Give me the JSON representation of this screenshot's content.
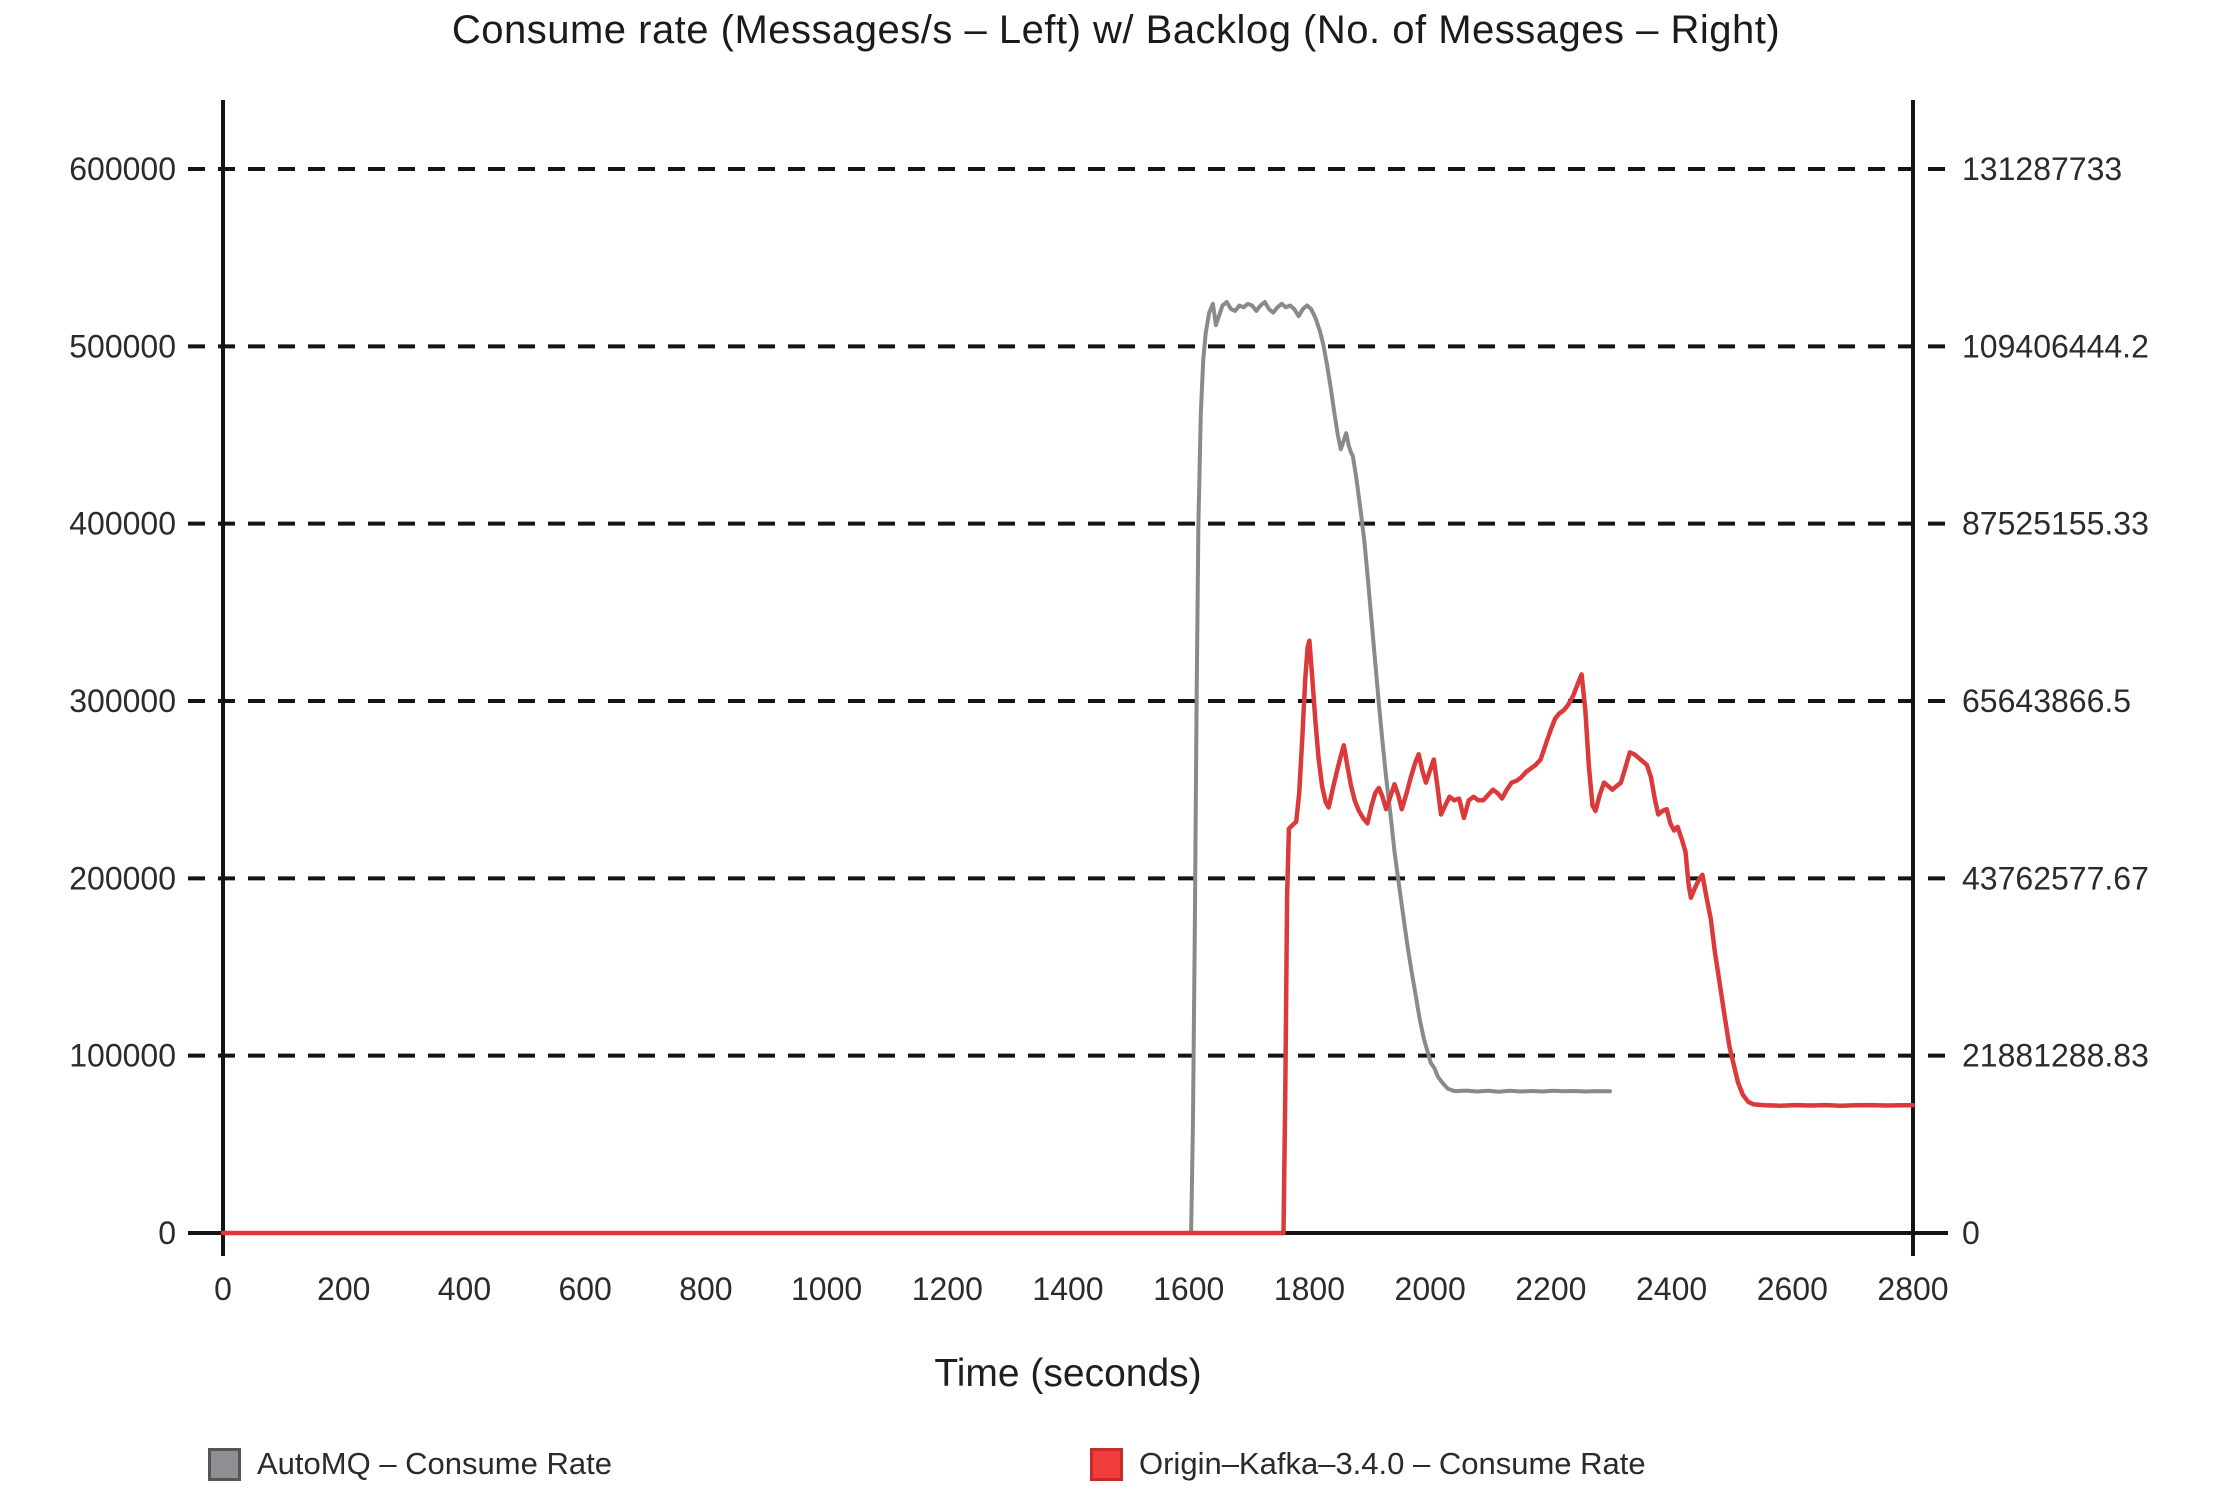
{
  "chart_data": {
    "type": "line",
    "title": "Consume rate (Messages/s – Left) w/ Backlog (No. of Messages – Right)",
    "xlabel": "Time (seconds)",
    "grid": "horizontal-dashed",
    "legend_position": "bottom",
    "x_axis": {
      "range": [
        0,
        2800
      ],
      "ticks": [
        0,
        200,
        400,
        600,
        800,
        1000,
        1200,
        1400,
        1600,
        1800,
        2000,
        2200,
        2400,
        2600,
        2800
      ]
    },
    "y_left_axis": {
      "label": "Messages/s",
      "range": [
        0,
        650000
      ],
      "ticks": [
        {
          "value": 0,
          "label": "0"
        },
        {
          "value": 100000,
          "label": "100000"
        },
        {
          "value": 200000,
          "label": "200000"
        },
        {
          "value": 300000,
          "label": "300000"
        },
        {
          "value": 400000,
          "label": "400000"
        },
        {
          "value": 500000,
          "label": "500000"
        },
        {
          "value": 600000,
          "label": "600000"
        }
      ]
    },
    "y_right_axis": {
      "label": "No. of Messages",
      "range": [
        0,
        142228377
      ],
      "ticks": [
        {
          "value": 0,
          "label": "0"
        },
        {
          "value": 100000,
          "label": "21881288.83"
        },
        {
          "value": 200000,
          "label": "43762577.67"
        },
        {
          "value": 300000,
          "label": "65643866.5"
        },
        {
          "value": 400000,
          "label": "87525155.33"
        },
        {
          "value": 500000,
          "label": "109406444.2"
        },
        {
          "value": 600000,
          "label": "131287733"
        }
      ]
    },
    "series": [
      {
        "name": "AutoMQ – Consume Rate",
        "color": "#8a8a8a",
        "width": 4,
        "points": [
          [
            0,
            0
          ],
          [
            150,
            0
          ],
          [
            300,
            0
          ],
          [
            450,
            0
          ],
          [
            600,
            0
          ],
          [
            750,
            0
          ],
          [
            900,
            0
          ],
          [
            1050,
            0
          ],
          [
            1200,
            0
          ],
          [
            1350,
            0
          ],
          [
            1500,
            0
          ],
          [
            1595,
            0
          ],
          [
            1604,
            0
          ],
          [
            1607,
            60000
          ],
          [
            1610,
            170000
          ],
          [
            1613,
            300000
          ],
          [
            1616,
            400000
          ],
          [
            1620,
            462000
          ],
          [
            1624,
            492000
          ],
          [
            1628,
            507000
          ],
          [
            1634,
            519000
          ],
          [
            1640,
            524000
          ],
          [
            1645,
            512000
          ],
          [
            1650,
            517000
          ],
          [
            1656,
            523000
          ],
          [
            1663,
            525000
          ],
          [
            1670,
            521000
          ],
          [
            1677,
            520000
          ],
          [
            1684,
            523000
          ],
          [
            1691,
            522000
          ],
          [
            1698,
            524000
          ],
          [
            1705,
            523000
          ],
          [
            1712,
            520000
          ],
          [
            1719,
            523000
          ],
          [
            1726,
            525000
          ],
          [
            1733,
            521000
          ],
          [
            1740,
            519000
          ],
          [
            1747,
            522000
          ],
          [
            1754,
            524000
          ],
          [
            1761,
            522000
          ],
          [
            1768,
            523000
          ],
          [
            1775,
            521000
          ],
          [
            1782,
            517000
          ],
          [
            1789,
            521000
          ],
          [
            1796,
            523000
          ],
          [
            1803,
            521000
          ],
          [
            1810,
            516000
          ],
          [
            1817,
            509000
          ],
          [
            1823,
            501000
          ],
          [
            1829,
            490000
          ],
          [
            1835,
            477000
          ],
          [
            1841,
            463000
          ],
          [
            1847,
            450000
          ],
          [
            1852,
            442000
          ],
          [
            1857,
            447000
          ],
          [
            1861,
            451000
          ],
          [
            1865,
            444000
          ],
          [
            1869,
            440000
          ],
          [
            1872,
            438000
          ],
          [
            1878,
            425000
          ],
          [
            1885,
            407000
          ],
          [
            1891,
            390000
          ],
          [
            1897,
            368000
          ],
          [
            1903,
            345000
          ],
          [
            1909,
            322000
          ],
          [
            1915,
            299000
          ],
          [
            1921,
            277000
          ],
          [
            1927,
            257000
          ],
          [
            1934,
            237000
          ],
          [
            1941,
            215000
          ],
          [
            1948,
            197000
          ],
          [
            1955,
            180000
          ],
          [
            1962,
            163000
          ],
          [
            1969,
            148000
          ],
          [
            1976,
            134000
          ],
          [
            1983,
            120000
          ],
          [
            1990,
            109000
          ],
          [
            1996,
            102000
          ],
          [
            2001,
            96000
          ],
          [
            2007,
            93000
          ],
          [
            2013,
            88000
          ],
          [
            2021,
            84500
          ],
          [
            2029,
            81500
          ],
          [
            2040,
            80000
          ],
          [
            2060,
            80300
          ],
          [
            2078,
            79800
          ],
          [
            2096,
            80200
          ],
          [
            2114,
            79700
          ],
          [
            2132,
            80200
          ],
          [
            2150,
            79800
          ],
          [
            2168,
            80100
          ],
          [
            2186,
            79800
          ],
          [
            2204,
            80200
          ],
          [
            2222,
            79900
          ],
          [
            2240,
            80100
          ],
          [
            2258,
            79800
          ],
          [
            2276,
            80000
          ],
          [
            2298,
            79900
          ]
        ]
      },
      {
        "name": "Origin–Kafka–3.4.0 – Consume Rate",
        "color": "#dc3a3a",
        "width": 4.5,
        "points": [
          [
            0,
            0
          ],
          [
            150,
            0
          ],
          [
            300,
            0
          ],
          [
            450,
            0
          ],
          [
            600,
            0
          ],
          [
            750,
            0
          ],
          [
            900,
            0
          ],
          [
            1050,
            0
          ],
          [
            1200,
            0
          ],
          [
            1350,
            0
          ],
          [
            1500,
            0
          ],
          [
            1650,
            0
          ],
          [
            1750,
            0
          ],
          [
            1757,
            0
          ],
          [
            1760,
            80000
          ],
          [
            1763,
            190000
          ],
          [
            1766,
            228000
          ],
          [
            1772,
            230000
          ],
          [
            1778,
            232000
          ],
          [
            1783,
            248000
          ],
          [
            1788,
            278000
          ],
          [
            1793,
            312000
          ],
          [
            1797,
            330000
          ],
          [
            1800,
            334000
          ],
          [
            1805,
            312000
          ],
          [
            1810,
            288000
          ],
          [
            1815,
            268000
          ],
          [
            1821,
            252000
          ],
          [
            1827,
            243000
          ],
          [
            1832,
            240000
          ],
          [
            1839,
            251000
          ],
          [
            1846,
            261000
          ],
          [
            1852,
            269000
          ],
          [
            1857,
            275000
          ],
          [
            1863,
            263000
          ],
          [
            1869,
            252000
          ],
          [
            1875,
            244000
          ],
          [
            1882,
            238000
          ],
          [
            1889,
            234000
          ],
          [
            1896,
            231000
          ],
          [
            1903,
            241000
          ],
          [
            1909,
            248000
          ],
          [
            1915,
            251000
          ],
          [
            1921,
            246000
          ],
          [
            1927,
            239000
          ],
          [
            1934,
            246000
          ],
          [
            1941,
            253000
          ],
          [
            1947,
            247000
          ],
          [
            1953,
            239000
          ],
          [
            1961,
            248000
          ],
          [
            1968,
            257000
          ],
          [
            1975,
            265000
          ],
          [
            1981,
            270000
          ],
          [
            1987,
            261000
          ],
          [
            1993,
            254000
          ],
          [
            2000,
            261000
          ],
          [
            2006,
            267000
          ],
          [
            2012,
            252000
          ],
          [
            2018,
            236000
          ],
          [
            2025,
            241000
          ],
          [
            2032,
            246000
          ],
          [
            2040,
            244000
          ],
          [
            2048,
            245000
          ],
          [
            2056,
            234000
          ],
          [
            2064,
            244000
          ],
          [
            2072,
            246000
          ],
          [
            2080,
            244000
          ],
          [
            2088,
            244000
          ],
          [
            2096,
            247000
          ],
          [
            2104,
            250000
          ],
          [
            2112,
            248000
          ],
          [
            2119,
            245000
          ],
          [
            2127,
            250000
          ],
          [
            2135,
            254000
          ],
          [
            2143,
            255000
          ],
          [
            2151,
            257000
          ],
          [
            2159,
            260000
          ],
          [
            2167,
            262000
          ],
          [
            2175,
            264000
          ],
          [
            2183,
            267000
          ],
          [
            2191,
            275000
          ],
          [
            2199,
            283000
          ],
          [
            2207,
            290000
          ],
          [
            2214,
            293000
          ],
          [
            2222,
            295000
          ],
          [
            2229,
            298000
          ],
          [
            2237,
            303000
          ],
          [
            2245,
            310000
          ],
          [
            2251,
            315000
          ],
          [
            2257,
            295000
          ],
          [
            2263,
            263000
          ],
          [
            2269,
            241000
          ],
          [
            2274,
            238000
          ],
          [
            2281,
            247000
          ],
          [
            2288,
            254000
          ],
          [
            2295,
            252000
          ],
          [
            2302,
            250000
          ],
          [
            2309,
            252000
          ],
          [
            2316,
            254000
          ],
          [
            2324,
            263000
          ],
          [
            2331,
            271000
          ],
          [
            2338,
            270000
          ],
          [
            2345,
            268000
          ],
          [
            2352,
            266000
          ],
          [
            2359,
            264000
          ],
          [
            2366,
            257000
          ],
          [
            2372,
            245000
          ],
          [
            2378,
            236000
          ],
          [
            2385,
            238000
          ],
          [
            2392,
            239000
          ],
          [
            2398,
            231000
          ],
          [
            2404,
            227000
          ],
          [
            2410,
            229000
          ],
          [
            2417,
            222000
          ],
          [
            2423,
            215000
          ],
          [
            2428,
            197000
          ],
          [
            2432,
            189000
          ],
          [
            2438,
            194000
          ],
          [
            2445,
            199000
          ],
          [
            2451,
            202000
          ],
          [
            2458,
            189000
          ],
          [
            2465,
            177000
          ],
          [
            2472,
            158000
          ],
          [
            2480,
            140000
          ],
          [
            2488,
            122000
          ],
          [
            2496,
            105000
          ],
          [
            2503,
            95000
          ],
          [
            2510,
            85000
          ],
          [
            2518,
            78000
          ],
          [
            2527,
            74000
          ],
          [
            2536,
            72500
          ],
          [
            2555,
            72000
          ],
          [
            2580,
            71800
          ],
          [
            2605,
            72100
          ],
          [
            2630,
            71900
          ],
          [
            2655,
            72100
          ],
          [
            2680,
            71800
          ],
          [
            2705,
            72000
          ],
          [
            2730,
            72100
          ],
          [
            2755,
            71900
          ],
          [
            2780,
            72000
          ],
          [
            2800,
            72000
          ]
        ]
      }
    ]
  },
  "legend": {
    "items": [
      {
        "label": "AutoMQ – Consume Rate",
        "swatch_fill": "#8d8f92",
        "swatch_border": "#54565a"
      },
      {
        "label": "Origin–Kafka–3.4.0 – Consume Rate",
        "swatch_fill": "#f13c3c",
        "swatch_border": "#c42b2b"
      }
    ]
  },
  "colors": {
    "axis": "#141414",
    "tick_label": "#2b2b2b",
    "title": "#1b1b1b"
  }
}
